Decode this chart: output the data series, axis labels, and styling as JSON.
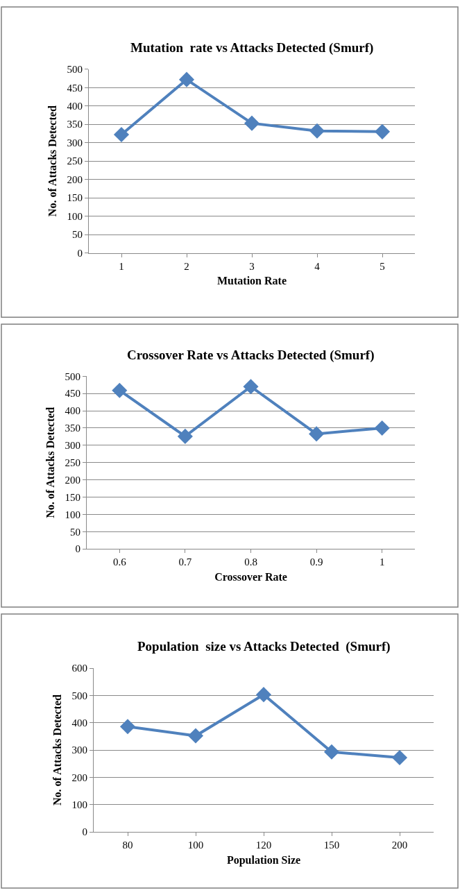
{
  "chart_data": [
    {
      "type": "line",
      "title": "Mutation  rate vs Attacks Detected (Smurf)",
      "xlabel": "Mutation Rate",
      "ylabel": "No. of Attacks Detected",
      "categories": [
        "1",
        "2",
        "3",
        "4",
        "5"
      ],
      "series": [
        {
          "color": "#4f81bd",
          "values": [
            322,
            472,
            353,
            332,
            330
          ]
        }
      ],
      "ylim": [
        0,
        500
      ],
      "yticks": [
        0,
        50,
        100,
        150,
        200,
        250,
        300,
        350,
        400,
        450,
        500
      ],
      "grid": "y",
      "marker": "diamond",
      "line_style": "solid"
    },
    {
      "type": "line",
      "title": "Crossover Rate vs Attacks Detected (Smurf)",
      "xlabel": "Crossover Rate",
      "ylabel": "No. of Attacks Detected",
      "categories": [
        "0.6",
        "0.7",
        "0.8",
        "0.9",
        "1"
      ],
      "series": [
        {
          "color": "#4f81bd",
          "values": [
            459,
            326,
            470,
            333,
            350
          ]
        }
      ],
      "ylim": [
        0,
        500
      ],
      "yticks": [
        0,
        50,
        100,
        150,
        200,
        250,
        300,
        350,
        400,
        450,
        500
      ],
      "grid": "y",
      "marker": "diamond",
      "line_style": "solid"
    },
    {
      "type": "line",
      "title": "Population  size vs Attacks Detected  (Smurf)",
      "xlabel": "Population Size",
      "ylabel": "No. of Attacks Detected",
      "categories": [
        "80",
        "100",
        "120",
        "150",
        "200"
      ],
      "series": [
        {
          "color": "#4f81bd",
          "values": [
            386,
            352,
            503,
            293,
            272
          ]
        }
      ],
      "ylim": [
        0,
        600
      ],
      "yticks": [
        0,
        100,
        200,
        300,
        400,
        500,
        600
      ],
      "grid": "y",
      "marker": "diamond",
      "line_style": "solid"
    }
  ]
}
